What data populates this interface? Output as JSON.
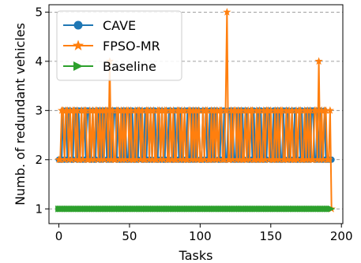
{
  "chart_data": {
    "type": "line",
    "title": "",
    "xlabel": "Tasks",
    "ylabel": "Numb. of redundant vehicles",
    "xlim": [
      -7,
      201
    ],
    "ylim": [
      0.7,
      5.15
    ],
    "xticks": [
      0,
      50,
      100,
      150,
      200
    ],
    "yticks": [
      1,
      2,
      3,
      4,
      5
    ],
    "grid": "horizontal dashed at y ticks",
    "legend_position": "top-left",
    "n_tasks": 194,
    "series": [
      {
        "name": "CAVE",
        "color": "#1f77b4",
        "marker": "circle",
        "values": [
          2,
          2,
          2,
          3,
          2,
          3,
          2,
          3,
          3,
          2,
          2,
          3,
          3,
          2,
          3,
          2,
          3,
          2,
          3,
          2,
          3,
          3,
          2,
          2,
          3,
          2,
          2,
          3,
          3,
          2,
          3,
          2,
          3,
          3,
          2,
          3,
          2,
          3,
          2,
          3,
          3,
          2,
          3,
          2,
          2,
          3,
          2,
          3,
          2,
          2,
          3,
          2,
          3,
          2,
          2,
          3,
          2,
          3,
          3,
          2,
          2,
          3,
          2,
          3,
          2,
          3,
          2,
          3,
          3,
          2,
          2,
          3,
          2,
          3,
          2,
          2,
          3,
          2,
          3,
          3,
          2,
          2,
          3,
          2,
          3,
          2,
          3,
          2,
          2,
          3,
          2,
          3,
          2,
          2,
          3,
          2,
          3,
          2,
          3,
          3,
          2,
          2,
          3,
          2,
          3,
          2,
          2,
          3,
          2,
          3,
          2,
          3,
          3,
          2,
          2,
          3,
          2,
          3,
          2,
          2,
          3,
          3,
          2,
          3,
          2,
          2,
          3,
          2,
          3,
          2,
          3,
          2,
          3,
          3,
          2,
          2,
          3,
          2,
          3,
          2,
          2,
          3,
          2,
          3,
          2,
          2,
          3,
          2,
          3,
          3,
          2,
          2,
          3,
          2,
          3,
          2,
          3,
          2,
          2,
          3,
          2,
          3,
          3,
          2,
          2,
          3,
          2,
          3,
          2,
          2,
          3,
          2,
          3,
          2,
          2,
          3,
          2,
          3,
          2,
          3,
          3,
          2,
          2,
          3,
          2,
          3,
          2,
          2,
          3,
          2,
          2,
          2,
          2,
          2
        ]
      },
      {
        "name": "FPSO-MR",
        "color": "#ff7f0e",
        "marker": "star",
        "values": [
          2,
          2,
          3,
          3,
          2,
          3,
          3,
          2,
          3,
          2,
          3,
          3,
          2,
          3,
          2,
          2,
          3,
          2,
          3,
          3,
          2,
          2,
          3,
          2,
          3,
          2,
          3,
          3,
          2,
          3,
          2,
          3,
          2,
          3,
          3,
          2,
          4,
          2,
          3,
          2,
          2,
          3,
          3,
          2,
          3,
          2,
          3,
          2,
          3,
          3,
          2,
          3,
          2,
          2,
          3,
          2,
          3,
          3,
          2,
          3,
          2,
          2,
          3,
          3,
          2,
          3,
          2,
          3,
          2,
          2,
          3,
          3,
          2,
          3,
          2,
          3,
          3,
          2,
          2,
          3,
          2,
          3,
          2,
          2,
          3,
          3,
          2,
          3,
          2,
          3,
          2,
          2,
          3,
          3,
          2,
          3,
          2,
          3,
          2,
          3,
          2,
          2,
          3,
          2,
          3,
          3,
          2,
          2,
          3,
          2,
          3,
          2,
          3,
          2,
          3,
          3,
          2,
          2,
          3,
          5,
          2,
          2,
          3,
          2,
          3,
          3,
          2,
          3,
          2,
          3,
          2,
          2,
          3,
          2,
          3,
          2,
          3,
          3,
          2,
          2,
          3,
          2,
          3,
          2,
          2,
          3,
          2,
          3,
          3,
          2,
          3,
          2,
          2,
          3,
          2,
          3,
          2,
          3,
          3,
          2,
          2,
          3,
          2,
          3,
          2,
          3,
          2,
          2,
          3,
          2,
          3,
          3,
          2,
          2,
          3,
          2,
          3,
          2,
          3,
          2,
          2,
          3,
          3,
          2,
          4,
          2,
          3,
          2,
          3,
          3,
          2,
          2,
          3,
          1
        ]
      },
      {
        "name": "Baseline",
        "color": "#2ca02c",
        "marker": "triangle-right",
        "values": [
          1,
          1,
          1,
          1,
          1,
          1,
          1,
          1,
          1,
          1,
          1,
          1,
          1,
          1,
          1,
          1,
          1,
          1,
          1,
          1,
          1,
          1,
          1,
          1,
          1,
          1,
          1,
          1,
          1,
          1,
          1,
          1,
          1,
          1,
          1,
          1,
          1,
          1,
          1,
          1,
          1,
          1,
          1,
          1,
          1,
          1,
          1,
          1,
          1,
          1,
          1,
          1,
          1,
          1,
          1,
          1,
          1,
          1,
          1,
          1,
          1,
          1,
          1,
          1,
          1,
          1,
          1,
          1,
          1,
          1,
          1,
          1,
          1,
          1,
          1,
          1,
          1,
          1,
          1,
          1,
          1,
          1,
          1,
          1,
          1,
          1,
          1,
          1,
          1,
          1,
          1,
          1,
          1,
          1,
          1,
          1,
          1,
          1,
          1,
          1,
          1,
          1,
          1,
          1,
          1,
          1,
          1,
          1,
          1,
          1,
          1,
          1,
          1,
          1,
          1,
          1,
          1,
          1,
          1,
          1,
          1,
          1,
          1,
          1,
          1,
          1,
          1,
          1,
          1,
          1,
          1,
          1,
          1,
          1,
          1,
          1,
          1,
          1,
          1,
          1,
          1,
          1,
          1,
          1,
          1,
          1,
          1,
          1,
          1,
          1,
          1,
          1,
          1,
          1,
          1,
          1,
          1,
          1,
          1,
          1,
          1,
          1,
          1,
          1,
          1,
          1,
          1,
          1,
          1,
          1,
          1,
          1,
          1,
          1,
          1,
          1,
          1,
          1,
          1,
          1,
          1,
          1,
          1,
          1,
          1,
          1,
          1,
          1,
          1,
          1,
          1,
          1,
          1,
          1
        ]
      }
    ]
  }
}
